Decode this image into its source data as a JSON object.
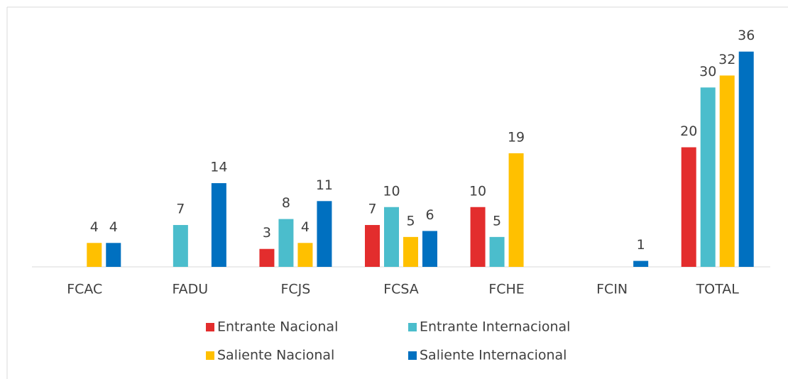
{
  "chart_data": {
    "type": "bar",
    "categories": [
      "FCAC",
      "FADU",
      "FCJS",
      "FCSA",
      "FCHE",
      "FCIN",
      "TOTAL"
    ],
    "series": [
      {
        "name": "Entrante Nacional",
        "color": "#e32d2d",
        "values": [
          null,
          null,
          3,
          7,
          10,
          null,
          20
        ]
      },
      {
        "name": "Entrante Internacional",
        "color": "#4bbdcc",
        "values": [
          null,
          7,
          8,
          10,
          5,
          null,
          30
        ]
      },
      {
        "name": "Saliente Nacional",
        "color": "#ffc000",
        "values": [
          4,
          null,
          4,
          5,
          19,
          null,
          32
        ]
      },
      {
        "name": "Saliente Internacional",
        "color": "#0070c0",
        "values": [
          4,
          14,
          11,
          6,
          null,
          1,
          36
        ]
      }
    ],
    "ylim": [
      0,
      40
    ],
    "legend": "bottom"
  }
}
